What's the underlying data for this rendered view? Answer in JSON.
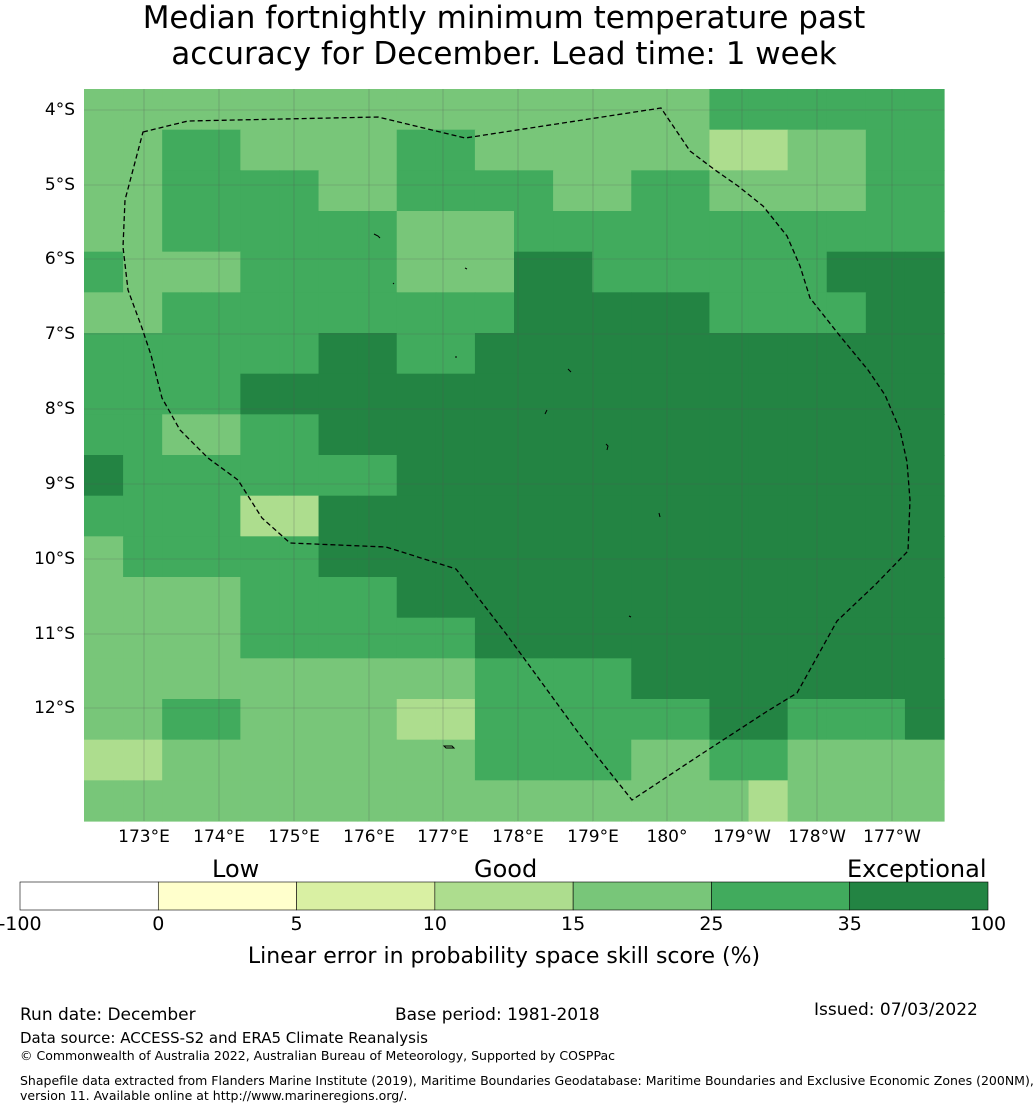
{
  "title": {
    "line1": "Median fortnightly minimum temperature past",
    "line2": "accuracy for December. Lead time: 1 week"
  },
  "colors": {
    "c0": "#ffffff",
    "c1": "#ffffcc",
    "c2": "#d9f0a3",
    "c3": "#addd8e",
    "c4": "#78c679",
    "c5": "#41ab5d",
    "c6": "#238443",
    "grid": "#555555",
    "boundary": "#000000"
  },
  "map": {
    "lat_labels": [
      "4°S",
      "5°S",
      "6°S",
      "7°S",
      "8°S",
      "9°S",
      "10°S",
      "11°S",
      "12°S"
    ],
    "lon_labels": [
      "173°E",
      "174°E",
      "175°E",
      "176°E",
      "177°E",
      "178°E",
      "179°E",
      "180°",
      "179°W",
      "178°W",
      "177°W"
    ],
    "legend_classes": [
      "<0",
      "0-5",
      "5-10",
      "10-15",
      "15-25",
      "25-35",
      "35-100"
    ],
    "skill_grid": [
      [
        "c4",
        "c4",
        "c4",
        "c4",
        "c4",
        "c4",
        "c4",
        "c4",
        "c4",
        "c4",
        "c4",
        "c4",
        "c4",
        "c4",
        "c4",
        "c4",
        "c5",
        "c5",
        "c5",
        "c5",
        "c5",
        "c5"
      ],
      [
        "c4",
        "c4",
        "c5",
        "c5",
        "c4",
        "c4",
        "c4",
        "c4",
        "c5",
        "c5",
        "c4",
        "c4",
        "c4",
        "c4",
        "c4",
        "c4",
        "c3",
        "c3",
        "c4",
        "c4",
        "c5",
        "c5"
      ],
      [
        "c4",
        "c4",
        "c5",
        "c5",
        "c5",
        "c5",
        "c4",
        "c4",
        "c5",
        "c5",
        "c5",
        "c5",
        "c4",
        "c4",
        "c5",
        "c5",
        "c4",
        "c4",
        "c4",
        "c4",
        "c5",
        "c5"
      ],
      [
        "c4",
        "c4",
        "c5",
        "c5",
        "c5",
        "c5",
        "c5",
        "c5",
        "c4",
        "c4",
        "c4",
        "c5",
        "c5",
        "c5",
        "c5",
        "c5",
        "c5",
        "c5",
        "c5",
        "c5",
        "c5",
        "c5"
      ],
      [
        "c5",
        "c4",
        "c4",
        "c4",
        "c5",
        "c5",
        "c5",
        "c5",
        "c4",
        "c4",
        "c4",
        "c6",
        "c6",
        "c5",
        "c5",
        "c5",
        "c5",
        "c5",
        "c5",
        "c6",
        "c6",
        "c6"
      ],
      [
        "c4",
        "c4",
        "c5",
        "c5",
        "c5",
        "c5",
        "c5",
        "c5",
        "c5",
        "c5",
        "c5",
        "c6",
        "c6",
        "c6",
        "c6",
        "c6",
        "c5",
        "c5",
        "c5",
        "c5",
        "c6",
        "c6"
      ],
      [
        "c5",
        "c5",
        "c5",
        "c5",
        "c5",
        "c5",
        "c6",
        "c6",
        "c5",
        "c5",
        "c6",
        "c6",
        "c6",
        "c6",
        "c6",
        "c6",
        "c6",
        "c6",
        "c6",
        "c6",
        "c6",
        "c6"
      ],
      [
        "c5",
        "c5",
        "c5",
        "c5",
        "c6",
        "c6",
        "c6",
        "c6",
        "c6",
        "c6",
        "c6",
        "c6",
        "c6",
        "c6",
        "c6",
        "c6",
        "c6",
        "c6",
        "c6",
        "c6",
        "c6",
        "c6"
      ],
      [
        "c5",
        "c5",
        "c4",
        "c4",
        "c5",
        "c5",
        "c6",
        "c6",
        "c6",
        "c6",
        "c6",
        "c6",
        "c6",
        "c6",
        "c6",
        "c6",
        "c6",
        "c6",
        "c6",
        "c6",
        "c6",
        "c6"
      ],
      [
        "c6",
        "c5",
        "c5",
        "c5",
        "c5",
        "c5",
        "c5",
        "c5",
        "c6",
        "c6",
        "c6",
        "c6",
        "c6",
        "c6",
        "c6",
        "c6",
        "c6",
        "c6",
        "c6",
        "c6",
        "c6",
        "c6"
      ],
      [
        "c5",
        "c5",
        "c5",
        "c5",
        "c3",
        "c3",
        "c6",
        "c6",
        "c6",
        "c6",
        "c6",
        "c6",
        "c6",
        "c6",
        "c6",
        "c6",
        "c6",
        "c6",
        "c6",
        "c6",
        "c6",
        "c6"
      ],
      [
        "c4",
        "c5",
        "c5",
        "c5",
        "c5",
        "c5",
        "c6",
        "c6",
        "c6",
        "c6",
        "c6",
        "c6",
        "c6",
        "c6",
        "c6",
        "c6",
        "c6",
        "c6",
        "c6",
        "c6",
        "c6",
        "c6"
      ],
      [
        "c4",
        "c4",
        "c4",
        "c4",
        "c5",
        "c5",
        "c5",
        "c5",
        "c6",
        "c6",
        "c6",
        "c6",
        "c6",
        "c6",
        "c6",
        "c6",
        "c6",
        "c6",
        "c6",
        "c6",
        "c6",
        "c6"
      ],
      [
        "c4",
        "c4",
        "c4",
        "c4",
        "c5",
        "c5",
        "c5",
        "c5",
        "c5",
        "c5",
        "c6",
        "c6",
        "c6",
        "c6",
        "c6",
        "c6",
        "c6",
        "c6",
        "c6",
        "c6",
        "c6",
        "c6"
      ],
      [
        "c4",
        "c4",
        "c4",
        "c4",
        "c4",
        "c4",
        "c4",
        "c4",
        "c4",
        "c4",
        "c5",
        "c5",
        "c5",
        "c5",
        "c6",
        "c6",
        "c6",
        "c6",
        "c6",
        "c6",
        "c6",
        "c6"
      ],
      [
        "c4",
        "c4",
        "c5",
        "c5",
        "c4",
        "c4",
        "c4",
        "c4",
        "c3",
        "c3",
        "c5",
        "c5",
        "c5",
        "c5",
        "c5",
        "c5",
        "c6",
        "c6",
        "c5",
        "c5",
        "c5",
        "c6"
      ],
      [
        "c3",
        "c3",
        "c4",
        "c4",
        "c4",
        "c4",
        "c4",
        "c4",
        "c4",
        "c4",
        "c5",
        "c5",
        "c5",
        "c5",
        "c4",
        "c4",
        "c5",
        "c5",
        "c4",
        "c4",
        "c4",
        "c4"
      ],
      [
        "c4",
        "c4",
        "c4",
        "c4",
        "c4",
        "c4",
        "c4",
        "c4",
        "c4",
        "c4",
        "c4",
        "c4",
        "c4",
        "c4",
        "c4",
        "c4",
        "c4",
        "c3",
        "c4",
        "c4",
        "c4",
        "c4"
      ]
    ]
  },
  "colorbar": {
    "heading_low": "Low",
    "heading_good": "Good",
    "heading_exceptional": "Exceptional",
    "ticks": [
      "-100",
      "0",
      "5",
      "10",
      "15",
      "25",
      "35",
      "100"
    ],
    "label": "Linear error in probability space skill score (%)"
  },
  "footer": {
    "run_date": "Run date: December",
    "base_period": "Base period: 1981-2018",
    "issued": "Issued: 07/03/2022",
    "data_source": "Data source: ACCESS-S2 and ERA5 Climate Reanalysis",
    "copyright": "© Commonwealth of Australia 2022, Australian Bureau of Meteorology, Supported by COSPPac",
    "shapefile_line1": "Shapefile data extracted from Flanders Marine Institute (2019), Maritime Boundaries Geodatabase: Maritime Boundaries and Exclusive Economic Zones (200NM),",
    "shapefile_line2": "version 11. Available online at http://www.marineregions.org/."
  }
}
